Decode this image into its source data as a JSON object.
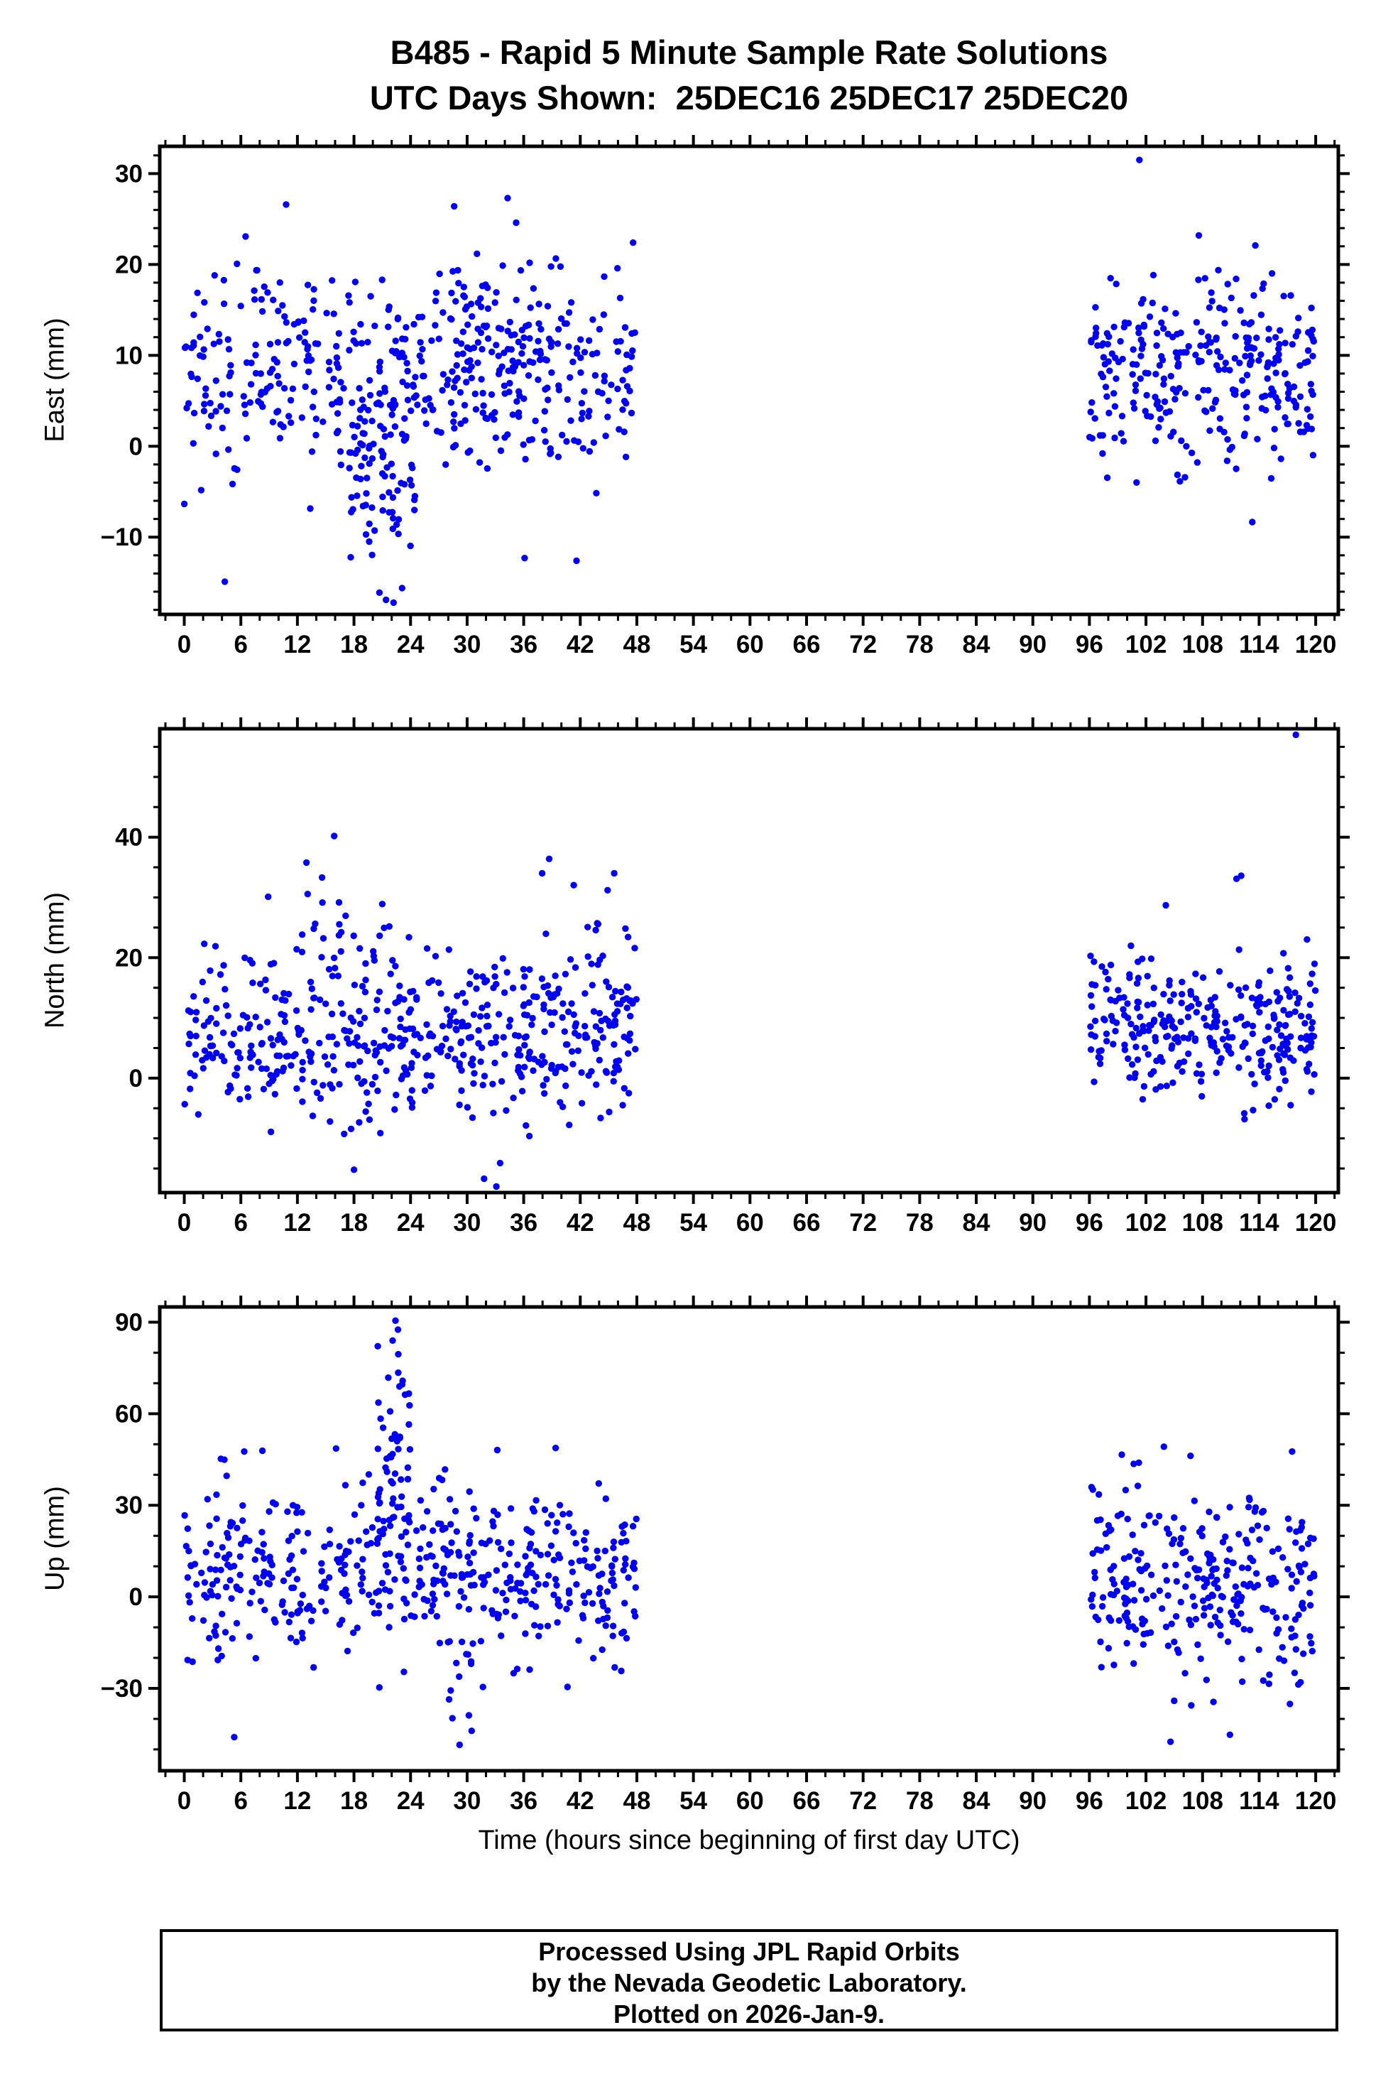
{
  "title": {
    "line1": "B485 - Rapid 5 Minute Sample Rate Solutions",
    "line2": "UTC Days Shown:  25DEC16 25DEC17 25DEC20"
  },
  "footer": {
    "line1": "Processed Using JPL Rapid Orbits",
    "line2": "by the Nevada Geodetic Laboratory.",
    "line3": "Plotted on 2026-Jan-9."
  },
  "colors": {
    "point": "#0000ee",
    "axis": "#000000",
    "text": "#000000",
    "background": "#ffffff"
  },
  "chart_data": {
    "type": "scatter",
    "title": "B485 - Rapid 5 Minute Sample Rate Solutions",
    "subtitle": "UTC Days Shown:  25DEC16 25DEC17 25DEC20",
    "station": "B485",
    "utc_days_shown": [
      "25DEC16",
      "25DEC17",
      "25DEC20"
    ],
    "sample_rate_minutes": 5,
    "time_coverage_hours": [
      [
        0,
        48
      ],
      [
        96,
        120
      ]
    ],
    "data_gap_hours": [
      48,
      96
    ],
    "seed": 42,
    "point_radius_px": 4.7,
    "x_axis": {
      "label": "Time (hours since beginning of first day UTC)",
      "xlim": [
        -2.6,
        122.4
      ],
      "major_ticks": [
        0,
        6,
        12,
        18,
        24,
        30,
        36,
        42,
        48,
        54,
        60,
        66,
        72,
        78,
        84,
        90,
        96,
        102,
        108,
        114,
        120
      ],
      "minor_step": 2
    },
    "panels": [
      {
        "name": "east",
        "ylabel": "East (mm)",
        "ylim": [
          -18.5,
          33
        ],
        "yticks": [
          -10,
          0,
          10,
          20,
          30
        ],
        "y_minor_step": 2,
        "clusters": [
          {
            "x0": 0,
            "x1": 48,
            "n": 460,
            "mean": 7.5,
            "sd": 5.4,
            "ymin": -13,
            "ymax": 23.5
          },
          {
            "x0": 17.5,
            "x1": 24.5,
            "n": 65,
            "mean": -4,
            "sd": 5.5,
            "ymin": -17,
            "ymax": 6
          },
          {
            "x0": 28,
            "x1": 41,
            "n": 55,
            "mean": 13.5,
            "sd": 4.5,
            "ymin": 3,
            "ymax": 26.5
          },
          {
            "x0": 96,
            "x1": 120,
            "n": 295,
            "mean": 8,
            "sd": 5.2,
            "ymin": -8.5,
            "ymax": 23.5
          }
        ],
        "extra_points": [
          [
            101.3,
            31.5
          ],
          [
            34.3,
            27.3
          ],
          [
            10.8,
            26.6
          ],
          [
            35.2,
            24.6
          ],
          [
            47.6,
            22.4
          ],
          [
            21.4,
            -16.9
          ],
          [
            22.2,
            -17.2
          ],
          [
            20.7,
            -16.1
          ],
          [
            23.1,
            -15.6
          ],
          [
            4.3,
            -14.9
          ],
          [
            36.1,
            -12.3
          ],
          [
            41.6,
            -12.6
          ],
          [
            107.6,
            23.2
          ]
        ]
      },
      {
        "name": "north",
        "ylabel": "North (mm)",
        "ylim": [
          -19,
          58
        ],
        "yticks": [
          0,
          20,
          40
        ],
        "y_minor_step": 5,
        "clusters": [
          {
            "x0": 0,
            "x1": 48,
            "n": 520,
            "mean": 7.5,
            "sd": 7,
            "ymin": -13,
            "ymax": 29
          },
          {
            "x0": 12,
            "x1": 22,
            "n": 22,
            "mean": 25,
            "sd": 7,
            "ymin": 12,
            "ymax": 40
          },
          {
            "x0": 30,
            "x1": 46,
            "n": 18,
            "mean": 22,
            "sd": 8,
            "ymin": 5,
            "ymax": 36.5
          },
          {
            "x0": 96,
            "x1": 120,
            "n": 295,
            "mean": 8,
            "sd": 6,
            "ymin": -10.5,
            "ymax": 29
          }
        ],
        "extra_points": [
          [
            117.9,
            57.0
          ],
          [
            15.9,
            40.2
          ],
          [
            38.7,
            36.4
          ],
          [
            45.6,
            34.0
          ],
          [
            44.9,
            31.2
          ],
          [
            8.9,
            30.1
          ],
          [
            21.0,
            28.9
          ],
          [
            31.8,
            -16.7
          ],
          [
            18.0,
            -15.2
          ],
          [
            33.5,
            -14.1
          ],
          [
            112.1,
            33.6
          ],
          [
            111.6,
            33.1
          ],
          [
            104.1,
            28.7
          ],
          [
            33.1,
            -18.0
          ]
        ]
      },
      {
        "name": "up",
        "ylabel": "Up (mm)",
        "ylim": [
          -57,
          95
        ],
        "yticks": [
          -30,
          0,
          30,
          60,
          90
        ],
        "y_minor_step": 10,
        "clusters": [
          {
            "x0": 0,
            "x1": 48,
            "n": 500,
            "mean": 9,
            "sd": 14,
            "ymin": -40,
            "ymax": 50
          },
          {
            "x0": 20.5,
            "x1": 24,
            "n": 46,
            "mean": 52,
            "sd": 19,
            "ymin": 24,
            "ymax": 91
          },
          {
            "x0": 27,
            "x1": 31,
            "n": 10,
            "mean": -28,
            "sd": 8,
            "ymin": -49,
            "ymax": -10
          },
          {
            "x0": 96,
            "x1": 120,
            "n": 290,
            "mean": 4,
            "sd": 15,
            "ymin": -44,
            "ymax": 48
          }
        ],
        "extra_points": [
          [
            22.4,
            90.5
          ],
          [
            22.1,
            84.0
          ],
          [
            22.7,
            79.5
          ],
          [
            5.3,
            -46.0
          ],
          [
            29.2,
            -48.5
          ],
          [
            104.6,
            -47.5
          ],
          [
            110.9,
            -45.2
          ],
          [
            16.1,
            48.6
          ],
          [
            103.9,
            49.2
          ],
          [
            117.5,
            47.6
          ],
          [
            33.2,
            48.1
          ]
        ]
      }
    ]
  }
}
